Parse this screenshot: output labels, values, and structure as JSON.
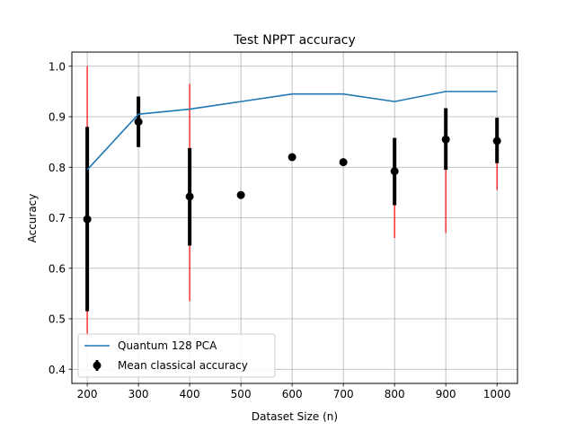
{
  "chart_data": {
    "type": "line",
    "title": "Test NPPT accuracy",
    "xlabel": "Dataset Size (n)",
    "ylabel": "Accuracy",
    "xlim": [
      170,
      1040
    ],
    "ylim": [
      0.372,
      1.028
    ],
    "xticks": [
      200,
      300,
      400,
      500,
      600,
      700,
      800,
      900,
      1000
    ],
    "yticks": [
      0.4,
      0.5,
      0.6,
      0.7,
      0.8,
      0.9,
      1.0
    ],
    "grid": true,
    "legend_position": "lower-left",
    "series": [
      {
        "name": "Quantum 128 PCA",
        "kind": "line",
        "color": "#1f77b4",
        "x": [
          200,
          300,
          400,
          500,
          600,
          700,
          800,
          900,
          1000
        ],
        "y": [
          0.795,
          0.905,
          0.915,
          0.93,
          0.945,
          0.945,
          0.93,
          0.95,
          0.95
        ]
      },
      {
        "name": "Mean classical accuracy",
        "kind": "errorbar",
        "marker_color": "#000000",
        "std_color": "#000000",
        "range_color": "#ff0000",
        "x": [
          200,
          300,
          400,
          500,
          600,
          700,
          800,
          900,
          1000
        ],
        "y": [
          0.697,
          0.89,
          0.742,
          0.745,
          0.82,
          0.81,
          0.792,
          0.855,
          0.852
        ],
        "std_low": [
          0.515,
          0.84,
          0.645,
          0.745,
          0.82,
          0.81,
          0.725,
          0.795,
          0.808
        ],
        "std_high": [
          0.88,
          0.94,
          0.838,
          0.745,
          0.82,
          0.81,
          0.858,
          0.917,
          0.898
        ],
        "range_low": [
          0.465,
          0.84,
          0.535,
          0.745,
          0.82,
          0.81,
          0.66,
          0.67,
          0.755
        ],
        "range_high": [
          1.0,
          0.94,
          0.965,
          0.745,
          0.82,
          0.81,
          0.858,
          0.917,
          0.898
        ]
      }
    ]
  }
}
